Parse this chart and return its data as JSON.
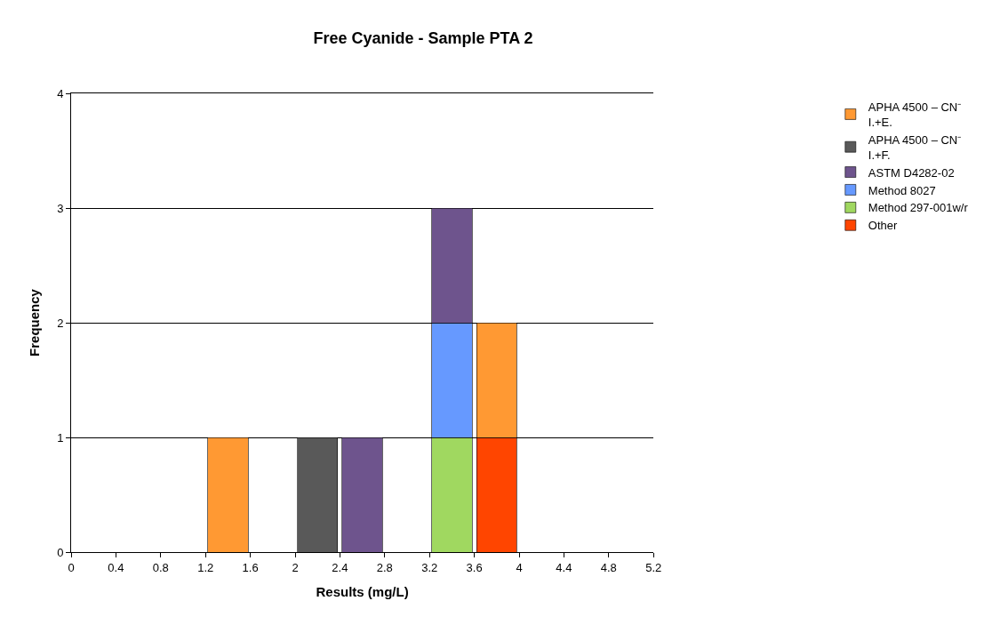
{
  "chart_data": {
    "type": "bar",
    "stacked": true,
    "title": "Free Cyanide - Sample PTA 2",
    "xlabel": "Results (mg/L)",
    "ylabel": "Frequency",
    "x": [
      1.4,
      2.2,
      2.6,
      3.4,
      3.8
    ],
    "xlim": [
      0,
      5.2
    ],
    "xticks": [
      0,
      0.4,
      0.8,
      1.2,
      1.6,
      2,
      2.4,
      2.8,
      3.2,
      3.6,
      4,
      4.4,
      4.8,
      5.2
    ],
    "ylim": [
      0,
      4
    ],
    "yticks": [
      0,
      1,
      2,
      3,
      4
    ],
    "grid": "y",
    "legend": "right",
    "series": [
      {
        "name": "Other",
        "color": "#ff4500",
        "values": [
          null,
          null,
          null,
          null,
          1
        ]
      },
      {
        "name": "Method 297-001w/r",
        "color": "#a0d860",
        "values": [
          null,
          null,
          null,
          1,
          null
        ]
      },
      {
        "name": "Method 8027",
        "color": "#6699ff",
        "values": [
          null,
          null,
          null,
          1,
          null
        ]
      },
      {
        "name": "ASTM D4282-02",
        "color": "#6e548d",
        "values": [
          null,
          null,
          1,
          1,
          null
        ]
      },
      {
        "name": "APHA 4500 – CN⁻ I.+F.",
        "color": "#595959",
        "values": [
          null,
          1,
          null,
          null,
          null
        ]
      },
      {
        "name": "APHA 4500 – CN⁻ I.+E.",
        "color": "#ff9933",
        "values": [
          1,
          null,
          null,
          null,
          1
        ]
      }
    ]
  }
}
